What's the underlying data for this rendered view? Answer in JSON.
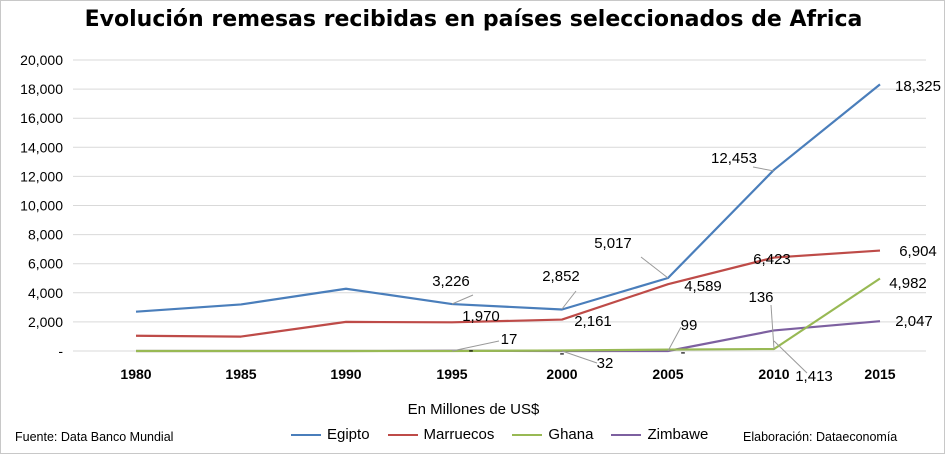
{
  "chart_data": {
    "type": "line",
    "title": "Evolución remesas recibidas en países seleccionados de Africa",
    "xlabel": "En Millones de US$",
    "ylabel": "",
    "categories": [
      "1980",
      "1985",
      "1990",
      "1995",
      "2000",
      "2005",
      "2010",
      "2015"
    ],
    "ylim": [
      0,
      20000
    ],
    "yticks": [
      0,
      2000,
      4000,
      6000,
      8000,
      10000,
      12000,
      14000,
      16000,
      18000,
      20000
    ],
    "ytick_labels": [
      "-",
      "2,000",
      "4,000",
      "6,000",
      "8,000",
      "10,000",
      "12,000",
      "14,000",
      "16,000",
      "18,000",
      "20,000"
    ],
    "grid": true,
    "legend_position": "bottom",
    "series": [
      {
        "name": "Egipto",
        "color": "#4a7ebb",
        "values": [
          2700,
          3200,
          4280,
          3226,
          2852,
          5017,
          12453,
          18325
        ]
      },
      {
        "name": "Marruecos",
        "color": "#be4b48",
        "values": [
          1050,
          990,
          2000,
          1970,
          2161,
          4589,
          6423,
          6904
        ]
      },
      {
        "name": "Ghana",
        "color": "#98b954",
        "values": [
          0,
          0,
          0,
          0,
          32,
          99,
          136,
          4982
        ]
      },
      {
        "name": "Zimbawe",
        "color": "#7d60a0",
        "values": [
          0,
          0,
          0,
          17,
          0,
          0,
          1413,
          2047
        ]
      }
    ],
    "annotations": [
      {
        "text": "3,226"
      },
      {
        "text": "2,852"
      },
      {
        "text": "5,017"
      },
      {
        "text": "12,453"
      },
      {
        "text": "18,325"
      },
      {
        "text": "1,970"
      },
      {
        "text": "2,161"
      },
      {
        "text": "4,589"
      },
      {
        "text": "6,423"
      },
      {
        "text": "6,904"
      },
      {
        "text": "17"
      },
      {
        "text": "32"
      },
      {
        "text": "99"
      },
      {
        "text": "136"
      },
      {
        "text": "1,413"
      },
      {
        "text": "4,982"
      },
      {
        "text": "2,047"
      },
      {
        "text": "-"
      },
      {
        "text": "-"
      },
      {
        "text": "-"
      }
    ]
  },
  "footer": {
    "source": "Fuente: Data Banco Mundial",
    "credit": "Elaboración: Dataeconomía"
  }
}
